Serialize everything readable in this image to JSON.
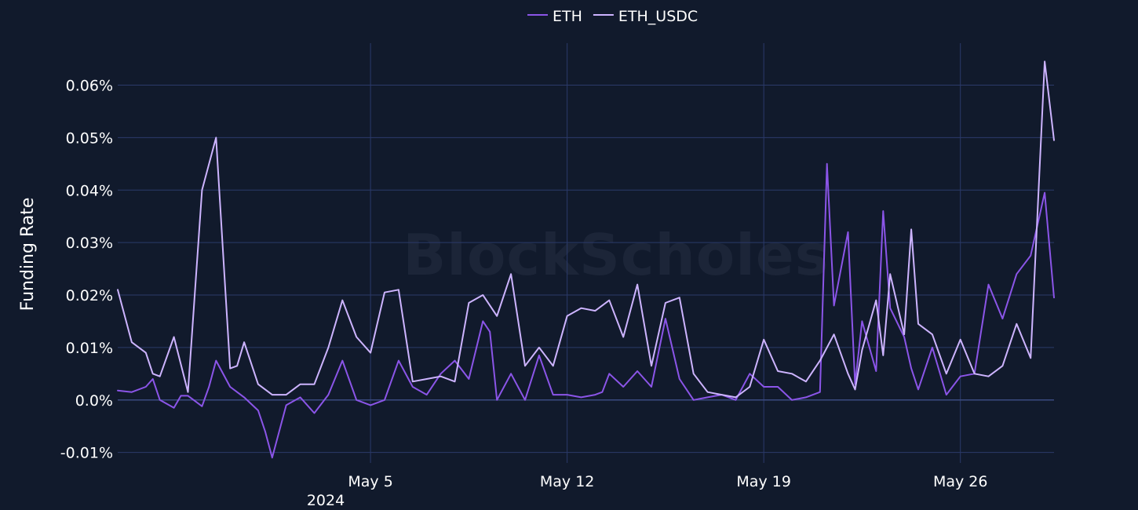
{
  "chart_data": {
    "type": "line",
    "ylabel": "Funding Rate",
    "watermark": "BlockScholes",
    "y_unit": "%",
    "ylim": [
      -0.012,
      0.068
    ],
    "y_ticks": [
      -0.01,
      0.0,
      0.01,
      0.02,
      0.03,
      0.04,
      0.05,
      0.06
    ],
    "y_tick_labels": [
      "-0.01%",
      "0.0%",
      "0.01%",
      "0.02%",
      "0.03%",
      "0.04%",
      "0.05%",
      "0.06%"
    ],
    "x_range": [
      "2024-04-26",
      "2024-05-29T08:00"
    ],
    "x_ticks": [
      "2024-05-05",
      "2024-05-12",
      "2024-05-19",
      "2024-05-26"
    ],
    "x_tick_labels": [
      "May 5",
      "May 12",
      "May 19",
      "May 26"
    ],
    "x_year_label": "2024",
    "grid": true,
    "legend_position": "top-center",
    "colors": {
      "background": "#111a2c",
      "grid": "#2b3a6a",
      "ETH": "#8b55e8",
      "ETH_USDC": "#cdb4ff"
    },
    "series": [
      {
        "name": "ETH",
        "x": [
          "2024-04-26",
          "2024-04-26T12:00",
          "2024-04-27",
          "2024-04-27T06:00",
          "2024-04-27T12:00",
          "2024-04-28",
          "2024-04-28T06:00",
          "2024-04-28T12:00",
          "2024-04-29",
          "2024-04-29T06:00",
          "2024-04-29T12:00",
          "2024-04-30",
          "2024-04-30T06:00",
          "2024-04-30T12:00",
          "2024-05-01",
          "2024-05-01T06:00",
          "2024-05-01T12:00",
          "2024-05-02",
          "2024-05-02T12:00",
          "2024-05-03",
          "2024-05-03T12:00",
          "2024-05-04",
          "2024-05-04T12:00",
          "2024-05-05",
          "2024-05-05T12:00",
          "2024-05-06",
          "2024-05-06T12:00",
          "2024-05-07",
          "2024-05-07T12:00",
          "2024-05-08",
          "2024-05-08T12:00",
          "2024-05-09",
          "2024-05-09T06:00",
          "2024-05-09T12:00",
          "2024-05-10",
          "2024-05-10T12:00",
          "2024-05-11",
          "2024-05-11T12:00",
          "2024-05-12",
          "2024-05-12T12:00",
          "2024-05-13",
          "2024-05-13T06:00",
          "2024-05-13T12:00",
          "2024-05-14",
          "2024-05-14T12:00",
          "2024-05-15",
          "2024-05-15T12:00",
          "2024-05-16",
          "2024-05-16T12:00",
          "2024-05-17",
          "2024-05-17T12:00",
          "2024-05-18",
          "2024-05-18T12:00",
          "2024-05-19",
          "2024-05-19T12:00",
          "2024-05-20",
          "2024-05-20T12:00",
          "2024-05-21",
          "2024-05-21T06:00",
          "2024-05-21T12:00",
          "2024-05-22",
          "2024-05-22T06:00",
          "2024-05-22T12:00",
          "2024-05-23",
          "2024-05-23T06:00",
          "2024-05-23T12:00",
          "2024-05-24",
          "2024-05-24T06:00",
          "2024-05-24T12:00",
          "2024-05-25",
          "2024-05-25T12:00",
          "2024-05-26",
          "2024-05-26T12:00",
          "2024-05-27",
          "2024-05-27T12:00",
          "2024-05-28",
          "2024-05-28T12:00",
          "2024-05-29",
          "2024-05-29T08:00"
        ],
        "y": [
          0.0018,
          0.0015,
          0.0025,
          0.004,
          0.0,
          -0.0015,
          0.0008,
          0.0008,
          -0.0012,
          0.0025,
          0.0075,
          0.0025,
          0.0015,
          0.0005,
          -0.002,
          -0.006,
          -0.011,
          -0.001,
          0.0005,
          -0.0025,
          0.001,
          0.0075,
          0.0,
          -0.001,
          0.0,
          0.0075,
          0.0025,
          0.001,
          0.005,
          0.0075,
          0.004,
          0.015,
          0.013,
          0.0,
          0.005,
          0.0,
          0.0085,
          0.001,
          0.001,
          0.0005,
          0.001,
          0.0015,
          0.005,
          0.0025,
          0.0055,
          0.0025,
          0.0155,
          0.004,
          0.0,
          0.0005,
          0.001,
          0.0,
          0.005,
          0.0025,
          0.0025,
          0.0,
          0.0005,
          0.0015,
          0.045,
          0.018,
          0.032,
          0.003,
          0.015,
          0.0055,
          0.036,
          0.0175,
          0.012,
          0.006,
          0.002,
          0.01,
          0.001,
          0.0045,
          0.005,
          0.022,
          0.0155,
          0.024,
          0.0275,
          0.0395,
          0.0195
        ]
      },
      {
        "name": "ETH_USDC",
        "x": [
          "2024-04-26",
          "2024-04-26T12:00",
          "2024-04-27",
          "2024-04-27T06:00",
          "2024-04-27T12:00",
          "2024-04-28",
          "2024-04-28T12:00",
          "2024-04-29",
          "2024-04-29T12:00",
          "2024-04-30",
          "2024-04-30T06:00",
          "2024-04-30T12:00",
          "2024-05-01",
          "2024-05-01T12:00",
          "2024-05-02",
          "2024-05-02T12:00",
          "2024-05-03",
          "2024-05-03T12:00",
          "2024-05-04",
          "2024-05-04T12:00",
          "2024-05-05",
          "2024-05-05T12:00",
          "2024-05-06",
          "2024-05-06T12:00",
          "2024-05-07",
          "2024-05-07T12:00",
          "2024-05-08",
          "2024-05-08T12:00",
          "2024-05-09",
          "2024-05-09T12:00",
          "2024-05-10",
          "2024-05-10T12:00",
          "2024-05-11",
          "2024-05-11T12:00",
          "2024-05-12",
          "2024-05-12T12:00",
          "2024-05-13",
          "2024-05-13T12:00",
          "2024-05-14",
          "2024-05-14T12:00",
          "2024-05-15",
          "2024-05-15T12:00",
          "2024-05-16",
          "2024-05-16T12:00",
          "2024-05-17",
          "2024-05-17T12:00",
          "2024-05-18",
          "2024-05-18T12:00",
          "2024-05-19",
          "2024-05-19T12:00",
          "2024-05-20",
          "2024-05-20T12:00",
          "2024-05-21",
          "2024-05-21T12:00",
          "2024-05-22",
          "2024-05-22T06:00",
          "2024-05-22T12:00",
          "2024-05-23",
          "2024-05-23T06:00",
          "2024-05-23T12:00",
          "2024-05-24",
          "2024-05-24T06:00",
          "2024-05-24T12:00",
          "2024-05-25",
          "2024-05-25T12:00",
          "2024-05-26",
          "2024-05-26T12:00",
          "2024-05-27",
          "2024-05-27T12:00",
          "2024-05-28",
          "2024-05-28T12:00",
          "2024-05-29",
          "2024-05-29T08:00"
        ],
        "y": [
          0.021,
          0.011,
          0.009,
          0.005,
          0.0045,
          0.012,
          0.0015,
          0.04,
          0.05,
          0.006,
          0.0065,
          0.011,
          0.003,
          0.001,
          0.001,
          0.003,
          0.003,
          0.01,
          0.019,
          0.012,
          0.009,
          0.0205,
          0.021,
          0.0035,
          0.004,
          0.0045,
          0.0035,
          0.0185,
          0.02,
          0.016,
          0.024,
          0.0065,
          0.01,
          0.0065,
          0.016,
          0.0175,
          0.017,
          0.019,
          0.012,
          0.022,
          0.0065,
          0.0185,
          0.0195,
          0.005,
          0.0015,
          0.001,
          0.0005,
          0.0025,
          0.0115,
          0.0055,
          0.005,
          0.0035,
          0.0075,
          0.0125,
          0.005,
          0.002,
          0.0095,
          0.019,
          0.0085,
          0.024,
          0.0125,
          0.0325,
          0.0145,
          0.0125,
          0.005,
          0.0115,
          0.005,
          0.0045,
          0.0065,
          0.0145,
          0.008,
          0.0645,
          0.0495
        ]
      }
    ]
  }
}
